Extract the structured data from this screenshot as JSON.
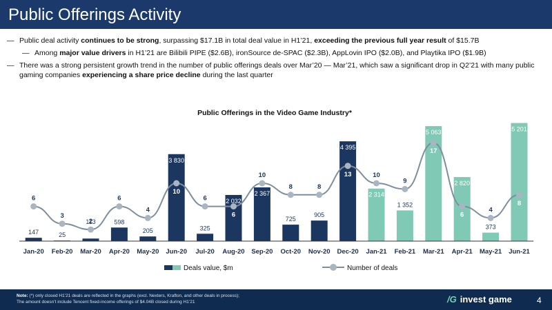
{
  "header": {
    "title": "Public Offerings Activity"
  },
  "bullets": {
    "b1": {
      "t1": "Public deal activity ",
      "b1": "continues to be strong",
      "t2": ", surpassing $17.1B in total deal value in H1’21, ",
      "b2": "exceeding the previous full year result",
      "t3": " of $15.7B"
    },
    "b2": {
      "t1": "Among ",
      "b1": "major value drivers",
      "t2": " in H1’21 are Bilibili PIPE ($2.6B), ironSource de-SPAC ($2.3B), AppLovin IPO ($2.0B), and Playtika IPO ($1.9B)"
    },
    "b3": {
      "t1": "There was a strong persistent growth trend in the number of public offerings deals over Mar’20 — Mar’21, which saw a significant drop in Q2’21 with many public gaming companies ",
      "b1": "experiencing a share price decline",
      "t2": " during the last quarter"
    }
  },
  "colors": {
    "dark_bar": "#1b365f",
    "light_bar": "#7fc9b5",
    "line": "#7d8e9c",
    "dot": "#a9b6c2",
    "header_bg": "#1b3a6b"
  },
  "chart_data": {
    "type": "bar",
    "title": "Public Offerings in the Video Game Industry*",
    "categories": [
      "Jan-20",
      "Feb-20",
      "Mar-20",
      "Apr-20",
      "May-20",
      "Jun-20",
      "Jul-20",
      "Aug-20",
      "Sep-20",
      "Oct-20",
      "Nov-20",
      "Dec-20",
      "Jan-21",
      "Feb-21",
      "Mar-21",
      "Apr-21",
      "May-21",
      "Jun-21"
    ],
    "series": [
      {
        "name": "Deals value, $m",
        "type": "bar",
        "values": [
          147,
          25,
          113,
          598,
          205,
          3830,
          325,
          2032,
          2367,
          725,
          905,
          4395,
          2314,
          1352,
          5063,
          2820,
          373,
          5201
        ],
        "value_labels": [
          "147",
          "25",
          "113",
          "598",
          "205",
          "3 830",
          "325",
          "2 032",
          "2 367",
          "725",
          "905",
          "4 395",
          "2 314",
          "1 352",
          "5 063",
          "2 820",
          "373",
          "5 201"
        ]
      },
      {
        "name": "Number of deals",
        "type": "line",
        "values": [
          6,
          3,
          2,
          6,
          4,
          10,
          6,
          6,
          10,
          8,
          8,
          13,
          10,
          9,
          17,
          6,
          4,
          8
        ]
      }
    ],
    "highlight_from_index": 12,
    "bar_ylim": [
      0,
      5400
    ],
    "line_ylim": [
      0,
      20
    ],
    "legend": {
      "bar": "Deals value, $m",
      "line": "Number of deals"
    }
  },
  "footer": {
    "note_label": "Note:",
    "note_line1": " (*) only closed H1’21 deals are reflected in the graphs (excl. Nexters, Krafton, and other deals in process);",
    "note_line2": "The amount doesn’t include Tencent fixed-income offerings of $4.04B closed during H1’21",
    "logo_mark": "/G",
    "logo_text": "invest game",
    "page_number": "4"
  }
}
